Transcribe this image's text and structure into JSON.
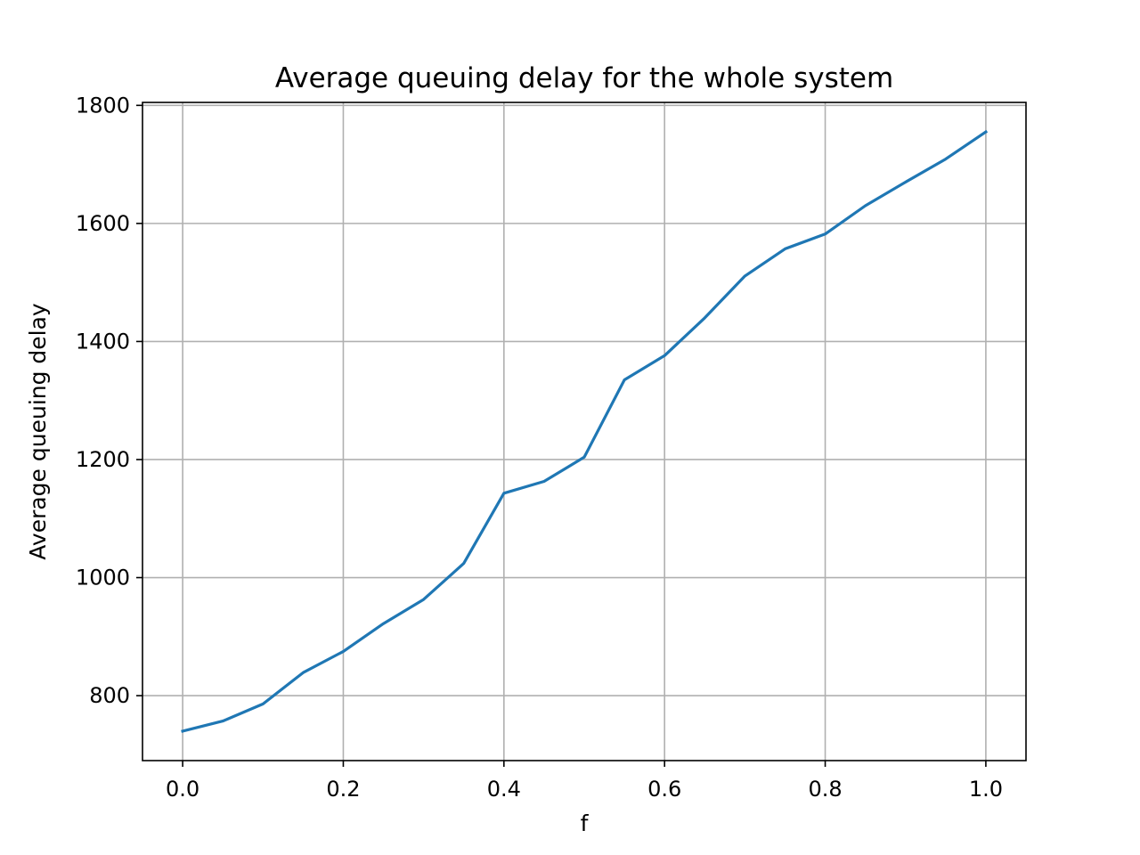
{
  "chart_data": {
    "type": "line",
    "title": "Average queuing delay for the whole system",
    "xlabel": "f",
    "ylabel": "Average queuing delay",
    "xlim": [
      -0.05,
      1.05
    ],
    "ylim": [
      690,
      1805
    ],
    "x_ticks": [
      0.0,
      0.2,
      0.4,
      0.6,
      0.8,
      1.0
    ],
    "x_tick_labels": [
      "0.0",
      "0.2",
      "0.4",
      "0.6",
      "0.8",
      "1.0"
    ],
    "y_ticks": [
      800,
      1000,
      1200,
      1400,
      1600,
      1800
    ],
    "y_tick_labels": [
      "800",
      "1000",
      "1200",
      "1400",
      "1600",
      "1800"
    ],
    "grid": true,
    "colors": {
      "line": "#1f77b4",
      "grid": "#b0b0b0",
      "axes": "#000000"
    },
    "series": [
      {
        "x": [
          0.0,
          0.05,
          0.1,
          0.15,
          0.2,
          0.25,
          0.3,
          0.35,
          0.4,
          0.45,
          0.5,
          0.55,
          0.6,
          0.65,
          0.7,
          0.75,
          0.8,
          0.85,
          0.9,
          0.95,
          1.0
        ],
        "values": [
          740,
          757,
          786,
          839,
          875,
          922,
          963,
          1024,
          1143,
          1163,
          1204,
          1335,
          1376,
          1440,
          1511,
          1557,
          1582,
          1630,
          1670,
          1709,
          1755
        ]
      }
    ]
  }
}
